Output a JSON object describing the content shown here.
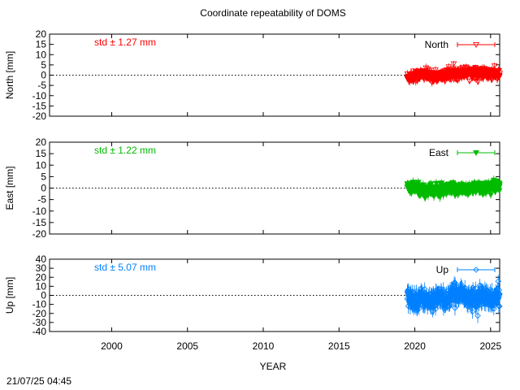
{
  "footer_timestamp": "21/07/25 04:45",
  "chart_data": {
    "type": "scatter",
    "title": "Coordinate repeatability of DOMS",
    "xlabel": "YEAR",
    "xlim": [
      1995.9,
      2025.6
    ],
    "xticks": [
      2000,
      2005,
      2010,
      2015,
      2020,
      2025
    ],
    "x_tick_labels": [
      "2000",
      "2005",
      "2010",
      "2015",
      "2020",
      "2025"
    ],
    "data_x_range": [
      2019.5,
      2025.6
    ],
    "grid": false,
    "zero_line": "dotted",
    "panels": [
      {
        "name": "North",
        "ylabel": "North [mm]",
        "ylim": [
          -20,
          20
        ],
        "yticks": [
          -20,
          -15,
          -10,
          -5,
          0,
          5,
          10,
          15,
          20
        ],
        "y_tick_labels": [
          "-20",
          "-15",
          "-10",
          "-5",
          "0",
          "5",
          "10",
          "15",
          "20"
        ],
        "std_label": "std ± 1.27 mm",
        "color": "#ff0000",
        "marker": "triangle-down-open",
        "legend_label": "North",
        "legend_position": "top-right",
        "std": 1.27,
        "trend": [
          [
            2019.5,
            -1.2
          ],
          [
            2020.5,
            0.4
          ],
          [
            2021.5,
            -0.8
          ],
          [
            2022.5,
            0.6
          ],
          [
            2023.5,
            1.5
          ],
          [
            2024.3,
            0.9
          ],
          [
            2025.6,
            0.2
          ]
        ]
      },
      {
        "name": "East",
        "ylabel": "East [mm]",
        "ylim": [
          -20,
          20
        ],
        "yticks": [
          -20,
          -15,
          -10,
          -5,
          0,
          5,
          10,
          15,
          20
        ],
        "y_tick_labels": [
          "-20",
          "-15",
          "-10",
          "-5",
          "0",
          "5",
          "10",
          "15",
          "20"
        ],
        "std_label": "std ± 1.22 mm",
        "color": "#00bb00",
        "marker": "triangle-down-filled",
        "legend_label": "East",
        "legend_position": "top-right",
        "std": 1.22,
        "trend": [
          [
            2019.5,
            0.5
          ],
          [
            2020.5,
            -0.8
          ],
          [
            2021.5,
            -1.2
          ],
          [
            2022.5,
            -0.6
          ],
          [
            2023.5,
            -0.2
          ],
          [
            2024.5,
            0.3
          ],
          [
            2025.6,
            0.8
          ]
        ]
      },
      {
        "name": "Up",
        "ylabel": "Up [mm]",
        "ylim": [
          -40,
          40
        ],
        "yticks": [
          -40,
          -30,
          -20,
          -10,
          0,
          10,
          20,
          30,
          40
        ],
        "y_tick_labels": [
          "-40",
          "-30",
          "-20",
          "-10",
          "0",
          "10",
          "20",
          "30",
          "40"
        ],
        "std_label": "std ± 5.07 mm",
        "color": "#0080ff",
        "marker": "diamond-open",
        "legend_label": "Up",
        "legend_position": "top-right",
        "std": 5.07,
        "trend": [
          [
            2019.5,
            -2
          ],
          [
            2020.0,
            -6
          ],
          [
            2020.5,
            -2
          ],
          [
            2021.0,
            -8
          ],
          [
            2021.5,
            -1
          ],
          [
            2022.0,
            -6
          ],
          [
            2022.5,
            0
          ],
          [
            2023.0,
            4
          ],
          [
            2023.5,
            -2
          ],
          [
            2024.0,
            -5
          ],
          [
            2024.5,
            0
          ],
          [
            2025.0,
            -6
          ],
          [
            2025.6,
            0
          ]
        ]
      }
    ]
  }
}
